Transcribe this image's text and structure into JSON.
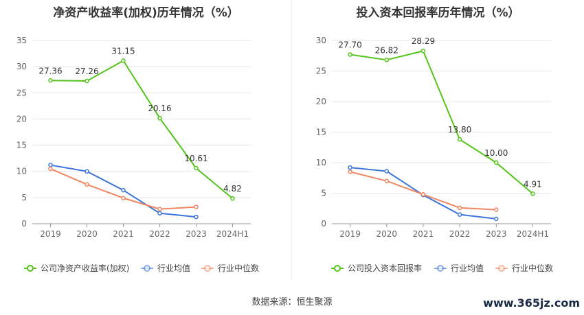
{
  "source_text": "数据来源：恒生聚源",
  "watermark": "www.365jz.com",
  "chart_data": [
    {
      "type": "line",
      "title": "净资产收益率(加权)历年情况（%）",
      "categories": [
        "2019",
        "2020",
        "2021",
        "2022",
        "2023",
        "2024H1"
      ],
      "ylim": [
        0,
        35
      ],
      "yticks": [
        0,
        5,
        10,
        15,
        20,
        25,
        30,
        35
      ],
      "grid": true,
      "legend_position": "bottom",
      "series": [
        {
          "name": "公司净资产收益率(加权)",
          "color": "#52c41a",
          "values": [
            27.36,
            27.26,
            31.15,
            20.16,
            10.61,
            4.82
          ],
          "labels": [
            "27.36",
            "27.26",
            "31.15",
            "20.16",
            "10.61",
            "4.82"
          ]
        },
        {
          "name": "行业均值",
          "color": "#3b74db",
          "values": [
            11.2,
            10.0,
            6.4,
            2.0,
            1.3,
            null
          ]
        },
        {
          "name": "行业中位数",
          "color": "#f0855f",
          "values": [
            10.5,
            7.5,
            4.9,
            2.8,
            3.2,
            null
          ]
        }
      ]
    },
    {
      "type": "line",
      "title": "投入资本回报率历年情况（%）",
      "categories": [
        "2019",
        "2020",
        "2021",
        "2022",
        "2023",
        "2024H1"
      ],
      "ylim": [
        0,
        30
      ],
      "yticks": [
        0,
        5,
        10,
        15,
        20,
        25,
        30
      ],
      "grid": true,
      "legend_position": "bottom",
      "series": [
        {
          "name": "公司投入资本回报率",
          "color": "#52c41a",
          "values": [
            27.7,
            26.82,
            28.29,
            13.8,
            10.0,
            4.91
          ],
          "labels": [
            "27.70",
            "26.82",
            "28.29",
            "13.80",
            "10.00",
            "4.91"
          ]
        },
        {
          "name": "行业均值",
          "color": "#3b74db",
          "values": [
            9.2,
            8.6,
            4.7,
            1.5,
            0.8,
            null
          ]
        },
        {
          "name": "行业中位数",
          "color": "#f0855f",
          "values": [
            8.5,
            7.0,
            4.8,
            2.6,
            2.3,
            null
          ]
        }
      ]
    }
  ]
}
